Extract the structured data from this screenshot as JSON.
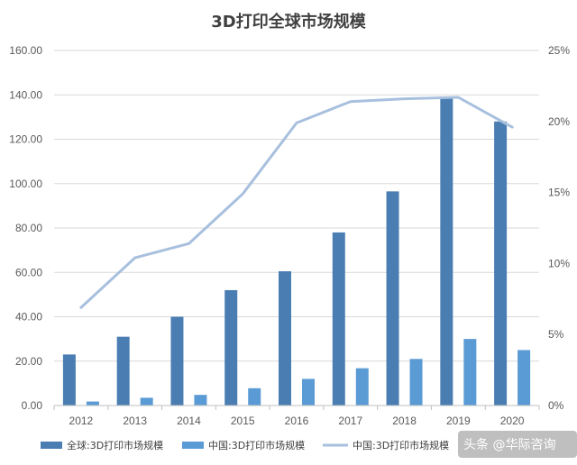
{
  "chart_data": {
    "type": "bar",
    "title": "3D打印全球市场规模",
    "categories": [
      "2012",
      "2013",
      "2014",
      "2015",
      "2016",
      "2017",
      "2018",
      "2019",
      "2020"
    ],
    "y_left": {
      "ticks": [
        "0.00",
        "20.00",
        "40.00",
        "60.00",
        "80.00",
        "100.00",
        "120.00",
        "140.00",
        "160.00"
      ],
      "range": [
        0,
        160
      ]
    },
    "y_right": {
      "ticks": [
        "0%",
        "5%",
        "10%",
        "15%",
        "20%",
        "25%"
      ],
      "range": [
        0,
        0.25
      ]
    },
    "grid": true,
    "legend_position": "bottom",
    "series": [
      {
        "name": "全球:3D打印市场规模",
        "type": "bar",
        "axis": "left",
        "color": "#4a7eb2",
        "values": [
          23.0,
          31.0,
          40.0,
          52.0,
          60.5,
          78.0,
          96.5,
          139.0,
          128.0
        ]
      },
      {
        "name": "中国:3D打印市场规模",
        "type": "bar",
        "axis": "left",
        "color": "#5b9bd5",
        "values": [
          1.8,
          3.5,
          4.8,
          7.8,
          12.0,
          16.8,
          21.0,
          30.0,
          25.0
        ]
      },
      {
        "name": "中国:3D打印市场规模",
        "type": "line",
        "axis": "right",
        "color": "#a8c0de",
        "values": [
          0.069,
          0.104,
          0.114,
          0.149,
          0.199,
          0.214,
          0.216,
          0.217,
          0.196
        ]
      }
    ]
  },
  "watermark": {
    "text": "头条 @华际咨询",
    "icon": "search-icon"
  }
}
